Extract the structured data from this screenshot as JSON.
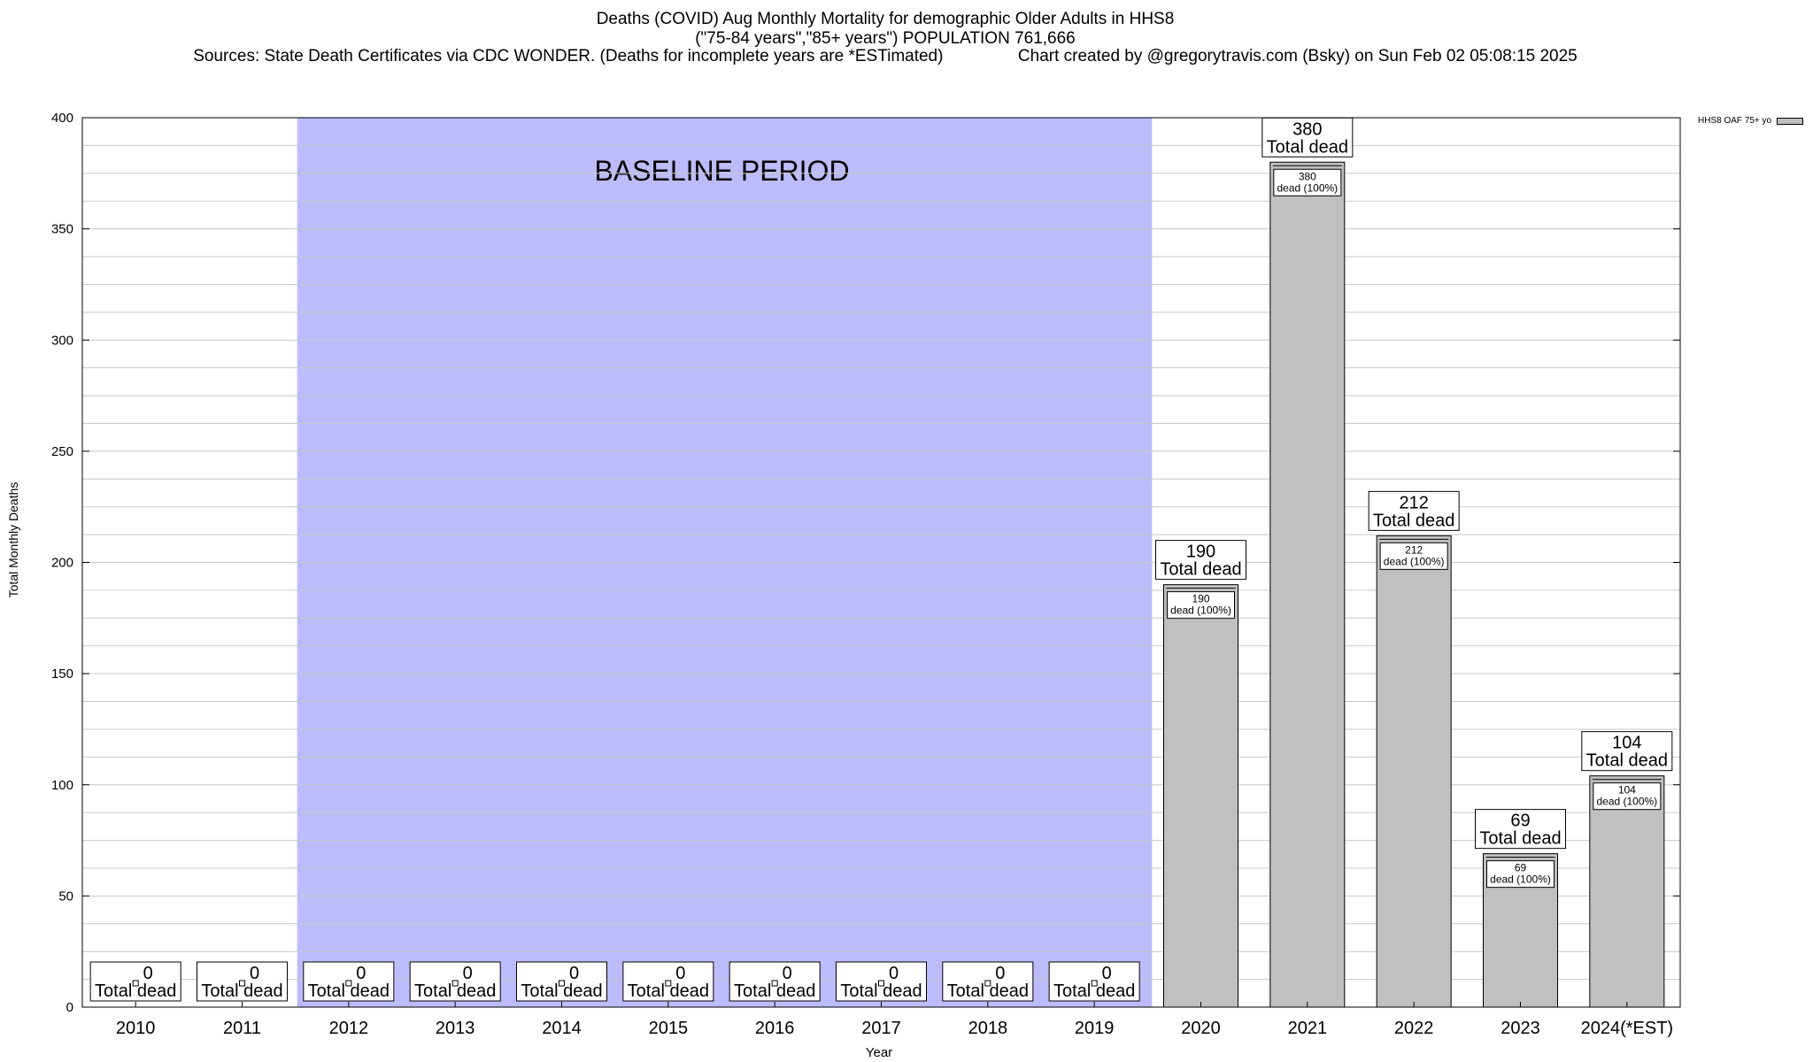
{
  "title": {
    "line1": "Deaths (COVID) Aug Monthly Mortality for demographic Older Adults in HHS8",
    "line2": "(\"75-84 years\",\"85+ years\") POPULATION 761,666",
    "line3": "Sources: State Death Certificates via CDC WONDER. (Deaths for incomplete years are *ESTimated)                Chart created by @gregorytravis.com (Bsky) on Sun Feb 02 05:08:15 2025"
  },
  "colors": {
    "bar": "#c0c0c0",
    "baseline": "#bcbcfa",
    "grid": "#c8c8c8"
  },
  "chart_data": {
    "type": "bar",
    "xlabel": "Year",
    "ylabel": "Total Monthly Deaths",
    "ylim": [
      0,
      400
    ],
    "yticks": [
      0,
      50,
      100,
      150,
      200,
      250,
      300,
      350,
      400
    ],
    "grid": true,
    "categories": [
      "2010",
      "2011",
      "2012",
      "2013",
      "2014",
      "2015",
      "2016",
      "2017",
      "2018",
      "2019",
      "2020",
      "2021",
      "2022",
      "2023",
      "2024(*EST)"
    ],
    "series": [
      {
        "name": "HHS8 OAF 75+ yo",
        "values": [
          0,
          0,
          0,
          0,
          0,
          0,
          0,
          0,
          0,
          0,
          190,
          380,
          212,
          69,
          104
        ]
      }
    ],
    "total_label": "Total dead",
    "inner_label": "dead (100%)",
    "baseline": {
      "label": "BASELINE PERIOD",
      "from": "2012",
      "to": "2019"
    },
    "legend_position": "top-right"
  }
}
